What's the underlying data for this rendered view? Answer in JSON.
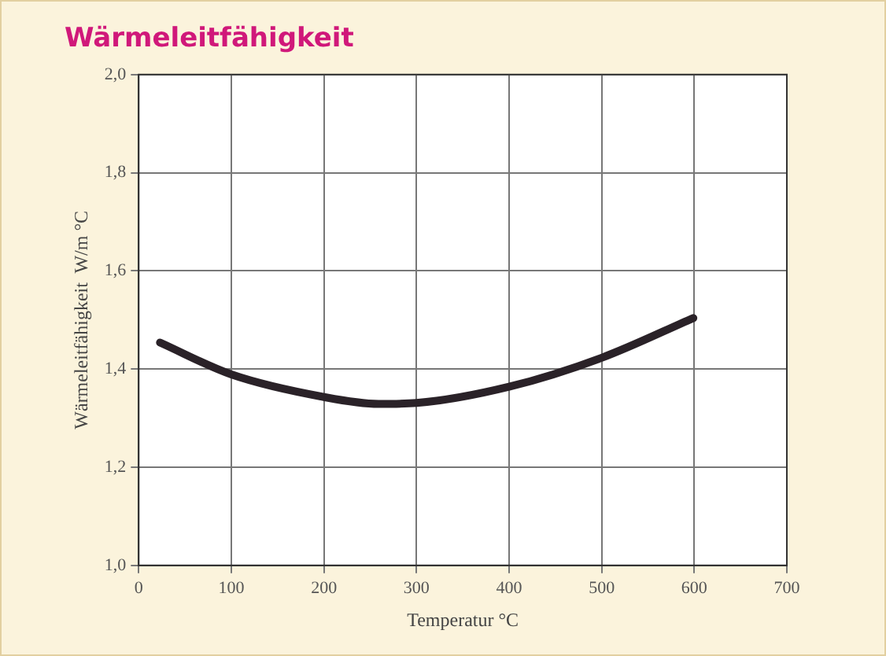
{
  "chart_data": {
    "type": "line",
    "title": "Wärmeleitfähigkeit",
    "xlabel": "Temperatur °C",
    "ylabel": "Wärmeleitfähigkeit  W/m °C",
    "x": [
      23,
      100,
      200,
      259,
      300,
      400,
      500,
      599
    ],
    "series": [
      {
        "color": "#2a2228",
        "values": [
          1.454,
          1.389,
          1.343,
          1.329,
          1.331,
          1.364,
          1.423,
          1.504
        ]
      }
    ],
    "xlim": [
      0,
      700
    ],
    "xticks": [
      0,
      100,
      200,
      300,
      400,
      500,
      600,
      700
    ],
    "ylim": [
      1.0,
      2.0
    ],
    "yticks": [
      {
        "value": 1.0,
        "label": "1,0"
      },
      {
        "value": 1.2,
        "label": "1,2"
      },
      {
        "value": 1.4,
        "label": "1,4"
      },
      {
        "value": 1.6,
        "label": "1,6"
      },
      {
        "value": 1.8,
        "label": "1,8"
      },
      {
        "value": 2.0,
        "label": "2,0"
      }
    ],
    "grid": true,
    "legend": false,
    "marker": "none",
    "line_style": "solid"
  }
}
